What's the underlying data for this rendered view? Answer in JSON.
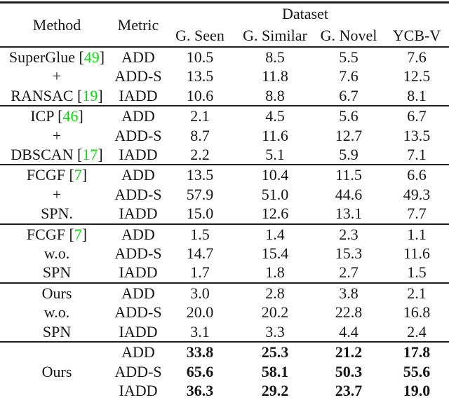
{
  "colors": {
    "citation_green": "#00e000",
    "text": "#161616",
    "rule": "#1e1e1e"
  },
  "header": {
    "dataset": "Dataset",
    "method": "Method",
    "metric": "Metric",
    "columns": [
      "G. Seen",
      "G. Similar",
      "G. Novel",
      "YCB-V"
    ]
  },
  "groups": [
    {
      "method_lines": [
        [
          {
            "t": "SuperGlue ["
          },
          {
            "t": "49",
            "cite": true
          },
          {
            "t": "]"
          }
        ],
        [
          {
            "t": "+"
          }
        ],
        [
          {
            "t": "RANSAC ["
          },
          {
            "t": "19",
            "cite": true
          },
          {
            "t": "]"
          }
        ]
      ],
      "bold_values": false,
      "rows": [
        {
          "metric": "ADD",
          "values": [
            "10.5",
            "8.5",
            "5.5",
            "7.6"
          ]
        },
        {
          "metric": "ADD-S",
          "values": [
            "13.5",
            "11.8",
            "7.6",
            "12.5"
          ]
        },
        {
          "metric": "IADD",
          "values": [
            "10.6",
            "8.8",
            "6.7",
            "8.1"
          ]
        }
      ]
    },
    {
      "method_lines": [
        [
          {
            "t": "ICP ["
          },
          {
            "t": "46",
            "cite": true
          },
          {
            "t": "]"
          }
        ],
        [
          {
            "t": "+"
          }
        ],
        [
          {
            "t": "DBSCAN ["
          },
          {
            "t": "17",
            "cite": true
          },
          {
            "t": "]"
          }
        ]
      ],
      "bold_values": false,
      "rows": [
        {
          "metric": "ADD",
          "values": [
            "2.1",
            "4.5",
            "5.6",
            "6.7"
          ]
        },
        {
          "metric": "ADD-S",
          "values": [
            "8.7",
            "11.6",
            "12.7",
            "13.5"
          ]
        },
        {
          "metric": "IADD",
          "values": [
            "2.2",
            "5.1",
            "5.9",
            "7.1"
          ]
        }
      ]
    },
    {
      "method_lines": [
        [
          {
            "t": "FCGF ["
          },
          {
            "t": "7",
            "cite": true
          },
          {
            "t": "]"
          }
        ],
        [
          {
            "t": "+"
          }
        ],
        [
          {
            "t": "SPN."
          }
        ]
      ],
      "bold_values": false,
      "rows": [
        {
          "metric": "ADD",
          "values": [
            "13.5",
            "10.4",
            "11.5",
            "6.6"
          ]
        },
        {
          "metric": "ADD-S",
          "values": [
            "57.9",
            "51.0",
            "44.6",
            "49.3"
          ]
        },
        {
          "metric": "IADD",
          "values": [
            "15.0",
            "12.6",
            "13.1",
            "7.7"
          ]
        }
      ]
    },
    {
      "method_lines": [
        [
          {
            "t": "FCGF ["
          },
          {
            "t": "7",
            "cite": true
          },
          {
            "t": "]"
          }
        ],
        [
          {
            "t": "w.o."
          }
        ],
        [
          {
            "t": "SPN"
          }
        ]
      ],
      "bold_values": false,
      "rows": [
        {
          "metric": "ADD",
          "values": [
            "1.5",
            "1.4",
            "2.3",
            "1.1"
          ]
        },
        {
          "metric": "ADD-S",
          "values": [
            "14.7",
            "15.4",
            "15.3",
            "11.6"
          ]
        },
        {
          "metric": "IADD",
          "values": [
            "1.7",
            "1.8",
            "2.7",
            "1.5"
          ]
        }
      ]
    },
    {
      "method_lines": [
        [
          {
            "t": "Ours"
          }
        ],
        [
          {
            "t": "w.o."
          }
        ],
        [
          {
            "t": "SPN"
          }
        ]
      ],
      "bold_values": false,
      "rows": [
        {
          "metric": "ADD",
          "values": [
            "3.0",
            "2.8",
            "3.8",
            "2.1"
          ]
        },
        {
          "metric": "ADD-S",
          "values": [
            "20.0",
            "20.2",
            "22.8",
            "16.8"
          ]
        },
        {
          "metric": "IADD",
          "values": [
            "3.1",
            "3.3",
            "4.4",
            "2.4"
          ]
        }
      ]
    },
    {
      "method_span": "Ours",
      "bold_values": true,
      "rows": [
        {
          "metric": "ADD",
          "values": [
            "33.8",
            "25.3",
            "21.2",
            "17.8"
          ]
        },
        {
          "metric": "ADD-S",
          "values": [
            "65.6",
            "58.1",
            "50.3",
            "55.6"
          ]
        },
        {
          "metric": "IADD",
          "values": [
            "36.3",
            "29.2",
            "23.7",
            "19.0"
          ]
        }
      ]
    }
  ]
}
